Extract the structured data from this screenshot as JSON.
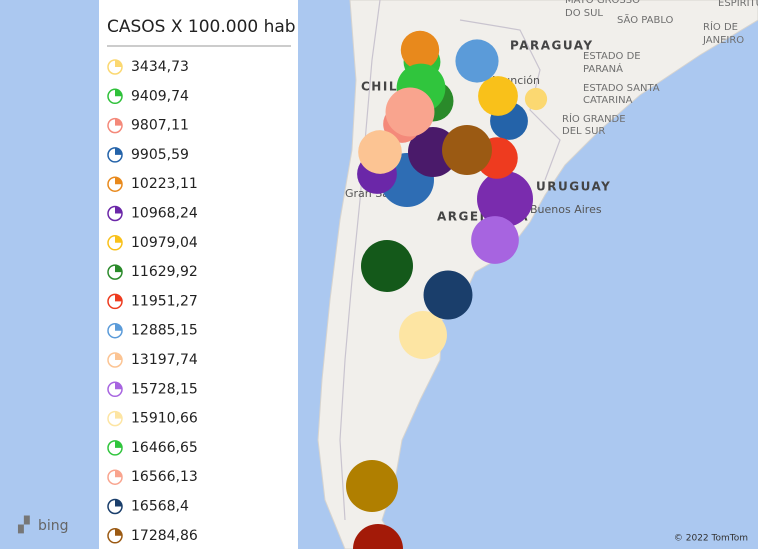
{
  "legend": {
    "title": "CASOS X 100.000 hab",
    "items": [
      {
        "label": "3434,73",
        "value": 3434.73,
        "color": "#fbd871"
      },
      {
        "label": "9409,74",
        "value": 9409.74,
        "color": "#2fc13a"
      },
      {
        "label": "9807,11",
        "value": 9807.11,
        "color": "#f4897a"
      },
      {
        "label": "9905,59",
        "value": 9905.59,
        "color": "#2463a9"
      },
      {
        "label": "10223,11",
        "value": 10223.11,
        "color": "#e8891c"
      },
      {
        "label": "10968,24",
        "value": 10968.24,
        "color": "#6b27a8"
      },
      {
        "label": "10979,04",
        "value": 10979.04,
        "color": "#f9c11a"
      },
      {
        "label": "11629,92",
        "value": 11629.92,
        "color": "#2a8a2a"
      },
      {
        "label": "11951,27",
        "value": 11951.27,
        "color": "#ee3b1f"
      },
      {
        "label": "12885,15",
        "value": 12885.15,
        "color": "#5b9bd9"
      },
      {
        "label": "13197,74",
        "value": 13197.74,
        "color": "#fcc493"
      },
      {
        "label": "15728,15",
        "value": 15728.15,
        "color": "#a764e0"
      },
      {
        "label": "15910,66",
        "value": 15910.66,
        "color": "#fde5a3"
      },
      {
        "label": "16466,65",
        "value": 16466.65,
        "color": "#30c53d"
      },
      {
        "label": "16566,13",
        "value": 16566.13,
        "color": "#f9a48e"
      },
      {
        "label": "16568,4",
        "value": 16568.4,
        "color": "#1a3e6b"
      },
      {
        "label": "17284,86",
        "value": 17284.86,
        "color": "#9b5a13"
      }
    ]
  },
  "map": {
    "labels": [
      "MATO GROSSO",
      "DO SUL",
      "SÃO PABLO",
      "ESPIRITU SANTO",
      "RÍO DE",
      "JANEIRO",
      "PARAGUAY",
      "ESTADO DE",
      "PARANÁ",
      "ESTADO SANTA",
      "CATARINA",
      "RÍO GRANDE",
      "DEL SUR",
      "CHILE",
      "Asunción",
      "Gran Santiago",
      "ARGENTINA",
      "URUGUAY",
      "Buenos Aires"
    ],
    "provider": "bing",
    "copyright": "© 2022 TomTom"
  }
}
